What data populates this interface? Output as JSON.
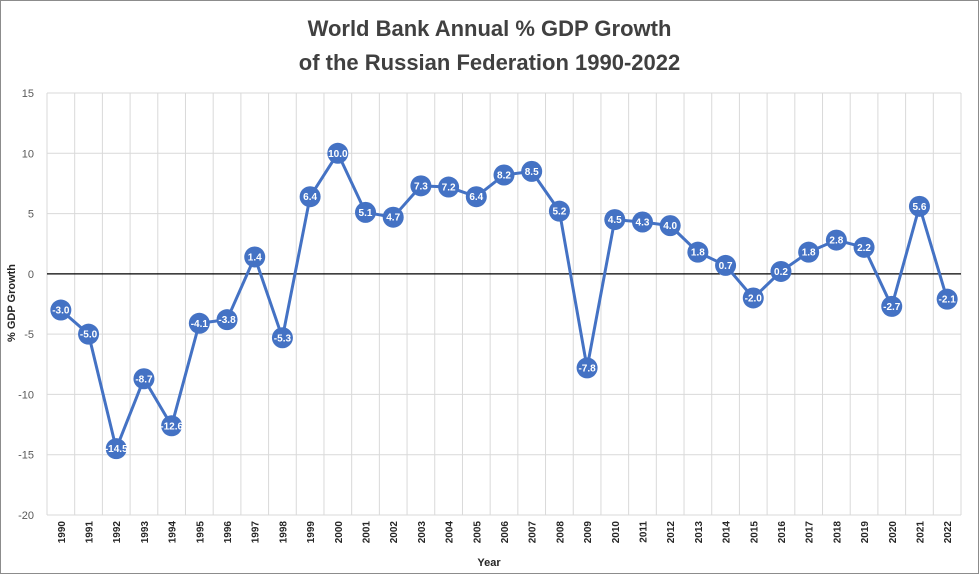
{
  "chart_data": {
    "type": "line",
    "title_line1": "World Bank Annual % GDP Growth",
    "title_line2": "of the Russian Federation 1990-2022",
    "xlabel": "Year",
    "ylabel": "% GDP Growth",
    "ylim": [
      -20,
      15
    ],
    "yticks": [
      -20,
      -15,
      -10,
      -5,
      0,
      5,
      10,
      15
    ],
    "grid": true,
    "legend": "none",
    "colors": {
      "series": "#4472c4",
      "grid": "#d9d9d9",
      "zero_line": "#000000"
    },
    "x": [
      "1990",
      "1991",
      "1992",
      "1993",
      "1994",
      "1995",
      "1996",
      "1997",
      "1998",
      "1999",
      "2000",
      "2001",
      "2002",
      "2003",
      "2004",
      "2005",
      "2006",
      "2007",
      "2008",
      "2009",
      "2010",
      "2011",
      "2012",
      "2013",
      "2014",
      "2015",
      "2016",
      "2017",
      "2018",
      "2019",
      "2020",
      "2021",
      "2022"
    ],
    "series": [
      {
        "values": [
          -3.0,
          -5.0,
          -14.5,
          -8.7,
          -12.6,
          -4.1,
          -3.8,
          1.4,
          -5.3,
          6.4,
          10.0,
          5.1,
          4.7,
          7.3,
          7.2,
          6.4,
          8.2,
          8.5,
          5.2,
          -7.8,
          4.5,
          4.3,
          4.0,
          1.8,
          0.7,
          -2.0,
          0.2,
          1.8,
          2.8,
          2.2,
          -2.7,
          5.6,
          -2.1
        ],
        "labels": [
          "-3.0",
          "-5.0",
          "-14.5",
          "-8.7",
          "-12.6",
          "-4.1",
          "-3.8",
          "1.4",
          "-5.3",
          "6.4",
          "10.0",
          "5.1",
          "4.7",
          "7.3",
          "7.2",
          "6.4",
          "8.2",
          "8.5",
          "5.2",
          "-7.8",
          "4.5",
          "4.3",
          "4.0",
          "1.8",
          "0.7",
          "-2.0",
          "0.2",
          "1.8",
          "2.8",
          "2.2",
          "-2.7",
          "5.6",
          "-2.1"
        ]
      }
    ]
  }
}
